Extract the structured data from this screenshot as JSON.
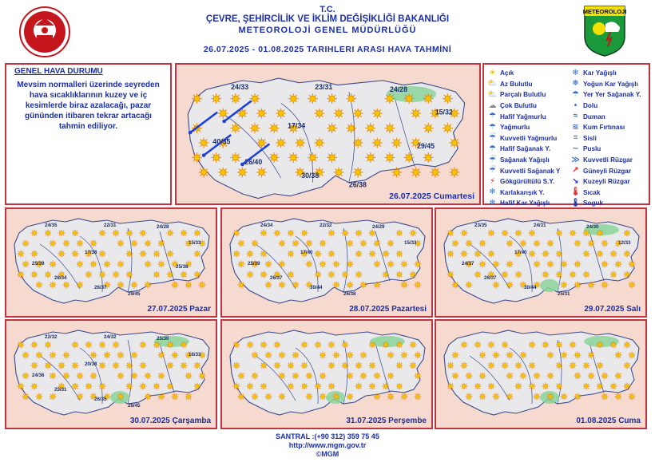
{
  "header": {
    "line1": "T.C.",
    "line2": "ÇEVRE, ŞEHİRCİLİK VE İKLİM DEĞİŞİKLİĞİ BAKANLIĞI",
    "line3": "METEOROLOJİ  GENEL  MÜDÜRLÜĞÜ",
    "line4": "26.07.2025  -  01.08.2025   TARIHLERI ARASI HAVA TAHMİNİ",
    "logo_text": "METEOROLOJI"
  },
  "general": {
    "title": "GENEL HAVA DURUMU",
    "text": "Mevsim normalleri üzerinde seyreden hava sıcaklıklarının kuzey ve iç kesimlerde biraz azalacağı, pazar gününden itibaren tekrar artacağı tahmin ediliyor."
  },
  "legend": {
    "left": [
      {
        "label": "Açık",
        "icon": "sun-icon"
      },
      {
        "label": "Az Bulutlu",
        "icon": "sun-cloud-icon"
      },
      {
        "label": "Parçalı Bulutlu",
        "icon": "partly-cloudy-icon"
      },
      {
        "label": "Çok Bulutlu",
        "icon": "cloud-icon"
      },
      {
        "label": "Hafif Yağmurlu",
        "icon": "light-rain-icon"
      },
      {
        "label": "Yağmurlu",
        "icon": "rain-icon"
      },
      {
        "label": "Kuvvetli Yağmurlu",
        "icon": "heavy-rain-icon"
      },
      {
        "label": "Hafif Sağanak Y.",
        "icon": "light-shower-icon"
      },
      {
        "label": "Sağanak Yağışlı",
        "icon": "shower-icon"
      },
      {
        "label": "Kuvvetli Sağanak Y",
        "icon": "heavy-shower-icon"
      },
      {
        "label": "Gökgürültülü S.Y.",
        "icon": "thunder-icon"
      },
      {
        "label": "Karlakarışık Y.",
        "icon": "sleet-icon"
      },
      {
        "label": "Hafif Kar Yağışlı",
        "icon": "light-snow-icon"
      }
    ],
    "right": [
      {
        "label": "Kar Yağışlı",
        "icon": "snow-icon"
      },
      {
        "label": "Yoğun Kar Yağışlı",
        "icon": "heavy-snow-icon"
      },
      {
        "label": "Yer Yer Sağanak Y.",
        "icon": "scattered-shower-icon"
      },
      {
        "label": "Dolu",
        "icon": "hail-icon"
      },
      {
        "label": "Duman",
        "icon": "smoke-icon"
      },
      {
        "label": "Kum Fırtınası",
        "icon": "sandstorm-icon"
      },
      {
        "label": "Sisli",
        "icon": "fog-icon"
      },
      {
        "label": "Puslu",
        "icon": "haze-icon"
      },
      {
        "label": "Kuvvetli Rüzgar",
        "icon": "strong-wind-icon"
      },
      {
        "label": "Güneyli Rüzgar",
        "icon": "south-wind-icon"
      },
      {
        "label": "Kuzeyli Rüzgar",
        "icon": "north-wind-icon"
      },
      {
        "label": "Sıcak",
        "icon": "hot-icon"
      },
      {
        "label": "Soguk",
        "icon": "cold-icon"
      }
    ]
  },
  "maps": [
    {
      "date": "26.07.2025 Cumartesi",
      "temps": [
        "24/33",
        "23/31",
        "24/28",
        "15/32",
        "17/34",
        "40/35",
        "26/40",
        "30/38",
        "26/38",
        "29/45"
      ]
    },
    {
      "date": "27.07.2025 Pazar",
      "temps": [
        "24/35",
        "22/31",
        "24/28",
        "15/33",
        "17/38",
        "25/39",
        "28/34",
        "26/37",
        "29/45",
        "25/38"
      ]
    },
    {
      "date": "28.07.2025 Pazartesi",
      "temps": [
        "24/34",
        "22/32",
        "24/29",
        "15/33",
        "17/40",
        "25/39",
        "26/37",
        "30/44",
        "26/38"
      ]
    },
    {
      "date": "29.07.2025 Salı",
      "temps": [
        "23/35",
        "24/31",
        "24/30",
        "12/33",
        "17/40",
        "24/37",
        "26/37",
        "30/44",
        "25/31"
      ]
    },
    {
      "date": "30.07.2025 Çarşamba",
      "temps": [
        "22/32",
        "24/32",
        "25/30",
        "16/33",
        "20/38",
        "24/36",
        "25/31",
        "26/35",
        "26/45"
      ]
    },
    {
      "date": "31.07.2025 Perşembe",
      "temps": []
    },
    {
      "date": "01.08.2025 Cuma",
      "temps": []
    }
  ],
  "footer": {
    "phone": "SANTRAL :(+90 312) 359 75 45",
    "url": "http://www.mgm.gov.tr",
    "copyright": "©MGM"
  },
  "colors": {
    "frame": "#c43340",
    "text": "#1c2fa8",
    "map_bg": "#f6d9cf",
    "land": "#e9e9ec",
    "sun": "#f5b400",
    "green": "#8bd39a"
  }
}
